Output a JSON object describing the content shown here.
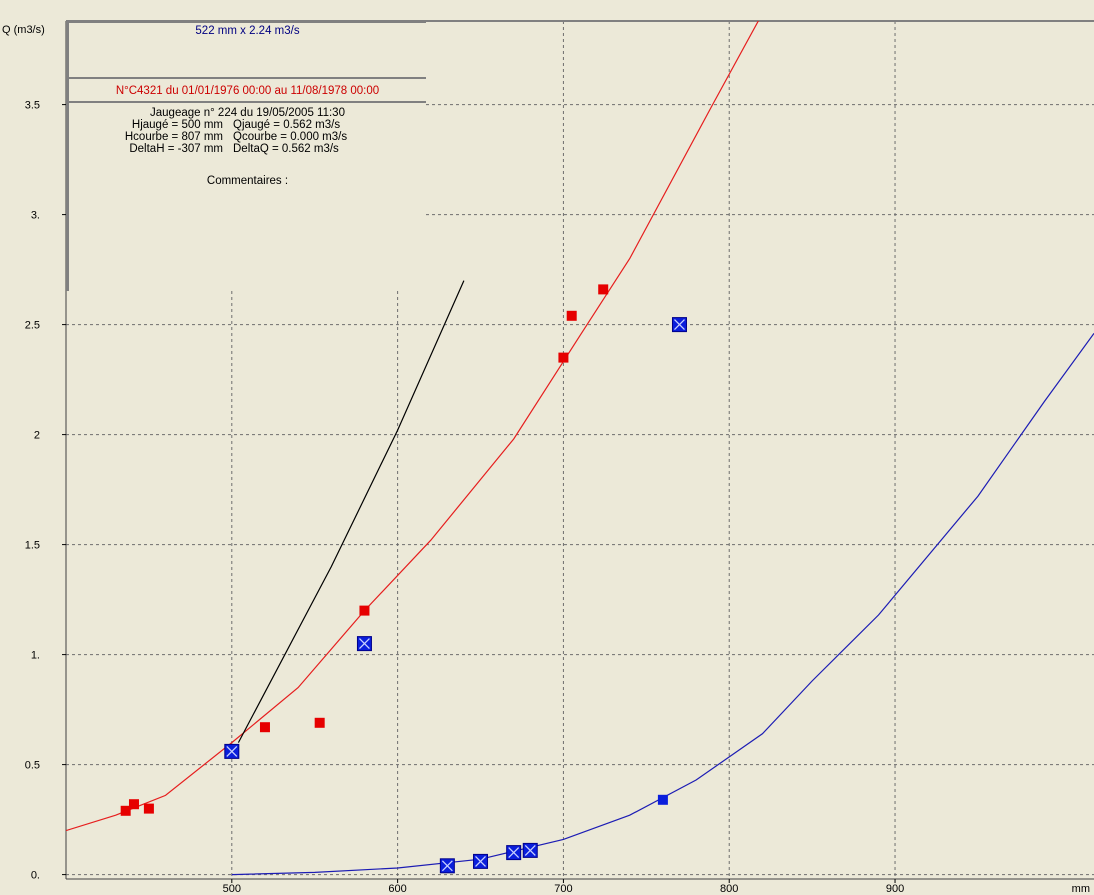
{
  "colors": {
    "background": "#ece9d8",
    "grid": "#6e6e6e",
    "red_curve": "#e61e1e",
    "red_point": "#e60000",
    "blue_curve": "#1c1cb4",
    "blue_point": "#0a1edc",
    "tangent": "#000000",
    "panel_border": "#808080"
  },
  "panel": {
    "scale_info": "522 mm x 2.24 m3/s",
    "curve_info": "N°C4321 du 01/01/1976 00:00 au 11/08/1978 00:00",
    "gauging_title": "Jaugeage n° 224 du 19/05/2005 11:30",
    "rows": [
      {
        "left": "Hjaugé = 500 mm",
        "right": "Qjaugé = 0.562 m3/s"
      },
      {
        "left": "Hcourbe = 807 mm",
        "right": "Qcourbe = 0.000 m3/s"
      },
      {
        "left": "DeltaH = -307 mm",
        "right": "DeltaQ = 0.562 m3/s"
      }
    ],
    "comment_label": "Commentaires :"
  },
  "chart_data": {
    "type": "scatter",
    "xlabel": "mm",
    "ylabel": "Q (m3/s)",
    "xlim": [
      400,
      1020
    ],
    "ylim": [
      -0.02,
      3.88
    ],
    "grid": true,
    "x_ticks": [
      {
        "value": 500,
        "label": "500"
      },
      {
        "value": 600,
        "label": "600"
      },
      {
        "value": 700,
        "label": "700"
      },
      {
        "value": 800,
        "label": "800"
      },
      {
        "value": 900,
        "label": "900"
      }
    ],
    "y_ticks": [
      {
        "value": 0,
        "label": "0."
      },
      {
        "value": 0.5,
        "label": "0.5"
      },
      {
        "value": 1,
        "label": "1."
      },
      {
        "value": 1.5,
        "label": "1.5"
      },
      {
        "value": 2,
        "label": "2"
      },
      {
        "value": 2.5,
        "label": "2.5"
      },
      {
        "value": 3,
        "label": "3."
      },
      {
        "value": 3.5,
        "label": "3.5"
      }
    ],
    "curves": [
      {
        "color": "red",
        "points": [
          [
            400,
            0.2
          ],
          [
            430,
            0.27
          ],
          [
            460,
            0.36
          ],
          [
            500,
            0.6
          ],
          [
            540,
            0.85
          ],
          [
            580,
            1.2
          ],
          [
            620,
            1.52
          ],
          [
            670,
            1.98
          ],
          [
            710,
            2.45
          ],
          [
            740,
            2.8
          ],
          [
            790,
            3.5
          ],
          [
            819,
            3.9
          ]
        ]
      },
      {
        "color": "blue",
        "points": [
          [
            500,
            0.0
          ],
          [
            550,
            0.01
          ],
          [
            600,
            0.03
          ],
          [
            650,
            0.07
          ],
          [
            700,
            0.16
          ],
          [
            740,
            0.27
          ],
          [
            780,
            0.43
          ],
          [
            820,
            0.64
          ],
          [
            850,
            0.88
          ],
          [
            890,
            1.18
          ],
          [
            950,
            1.72
          ],
          [
            990,
            2.15
          ],
          [
            1020,
            2.46
          ]
        ]
      },
      {
        "color": "black",
        "points": [
          [
            504,
            0.6
          ],
          [
            560,
            1.4
          ],
          [
            600,
            2.02
          ],
          [
            640,
            2.7
          ]
        ]
      }
    ],
    "series": [
      {
        "color": "red",
        "marker": "square",
        "points": [
          [
            436,
            0.29
          ],
          [
            441,
            0.32
          ],
          [
            450,
            0.3
          ],
          [
            520,
            0.67
          ],
          [
            553,
            0.69
          ],
          [
            580,
            1.2
          ],
          [
            700,
            2.35
          ],
          [
            705,
            2.54
          ],
          [
            724,
            2.66
          ]
        ]
      },
      {
        "color": "blue",
        "marker": "crossed-square",
        "points": [
          [
            500,
            0.56
          ],
          [
            580,
            1.05
          ],
          [
            630,
            0.04
          ],
          [
            650,
            0.06
          ],
          [
            670,
            0.1
          ],
          [
            680,
            0.11
          ],
          [
            770,
            2.5
          ]
        ]
      },
      {
        "color": "blue",
        "marker": "square",
        "points": [
          [
            760,
            0.34
          ]
        ]
      }
    ]
  }
}
